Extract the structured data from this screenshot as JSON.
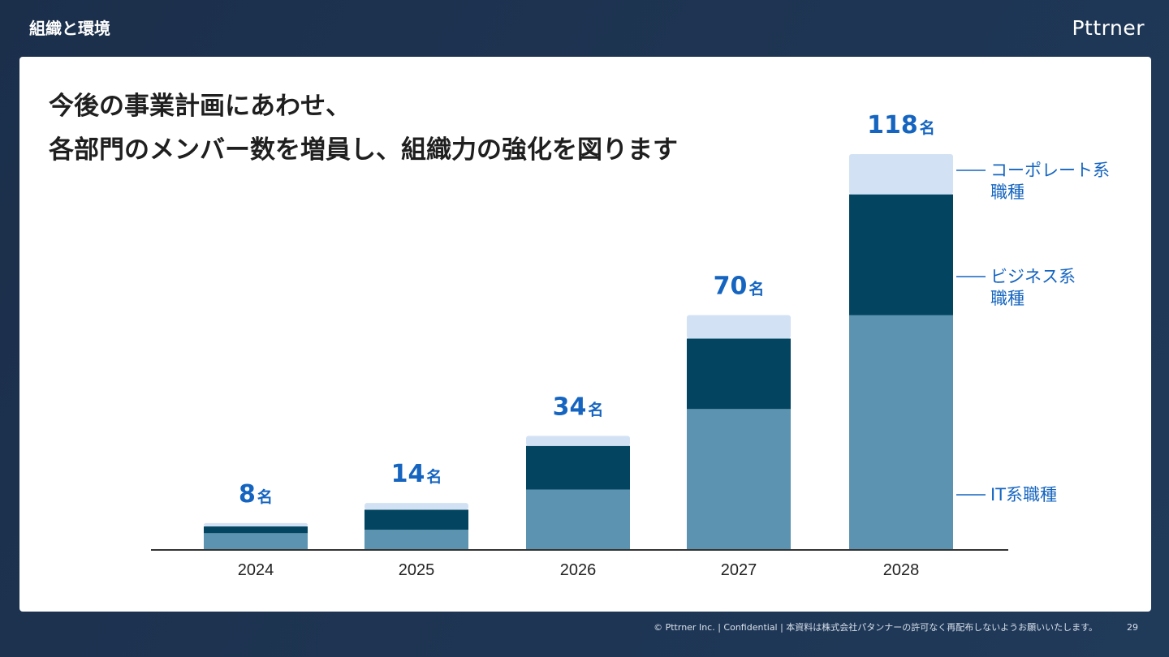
{
  "header": {
    "section_title": "組織と環境",
    "logo_text": "Pttrner"
  },
  "slide": {
    "headline_line1": "今後の事業計画にあわせ、",
    "headline_line2": "各部門のメンバー数を増員し、組織力の強化を図ります"
  },
  "chart_data": {
    "type": "bar",
    "stacked": true,
    "categories": [
      "2024",
      "2025",
      "2026",
      "2027",
      "2028"
    ],
    "totals": [
      8,
      14,
      34,
      70,
      118
    ],
    "total_unit": "名",
    "series": [
      {
        "name": "IT系職種",
        "values": [
          5,
          6,
          18,
          42,
          70
        ],
        "color": "#5b93b0"
      },
      {
        "name": "ビジネス系職種",
        "values": [
          2,
          6,
          13,
          21,
          36
        ],
        "color": "#034561"
      },
      {
        "name": "コーポレート系職種",
        "values": [
          1,
          2,
          3,
          7,
          12
        ],
        "color": "#d2e2f4"
      }
    ],
    "legend_labels": [
      [
        "コーポレート系",
        "職種"
      ],
      [
        "ビジネス系",
        "職種"
      ],
      [
        "IT系職種"
      ]
    ],
    "ylim": [
      0,
      118
    ],
    "total_label_color": "#1565c0",
    "legend_text_color": "#1565c0",
    "axis_color": "#333333"
  },
  "footer": {
    "copyright": "© Pttrner Inc. | Confidential | 本資料は株式会社パタンナーの許可なく再配布しないようお願いいたします。",
    "page_number": "29"
  }
}
